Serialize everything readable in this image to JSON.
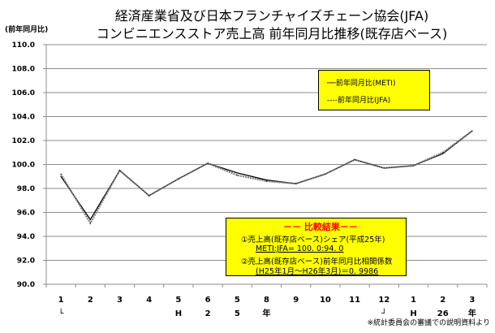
{
  "chart_data": {
    "type": "line",
    "title": [
      "経済産業省及び日本フランチャイズチェーン協会(JFA)",
      "コンビニエンスストア売上高 前年同月比推移(既存店ベース)"
    ],
    "ylabel": "(前年同月比)",
    "ylim": [
      90,
      110
    ],
    "yticks": [
      "110.0",
      "108.0",
      "106.0",
      "104.0",
      "102.0",
      "100.0",
      "98.0",
      "96.0",
      "94.0",
      "92.0",
      "90.0"
    ],
    "categories": [
      "1",
      "2",
      "3",
      "4",
      "5",
      "6",
      "5",
      "8",
      "9",
      "10",
      "11",
      "12",
      "1",
      "2",
      "3"
    ],
    "category_sublabels": [
      "└",
      "",
      "",
      "",
      "H",
      "2",
      "5",
      "年",
      "",
      "",
      "",
      "┘",
      "H",
      "26",
      "年"
    ],
    "grid": true,
    "series": [
      {
        "name": "前年同月比(METI)",
        "style": "solid",
        "values": [
          99.0,
          95.4,
          99.5,
          97.4,
          98.8,
          100.1,
          99.3,
          98.7,
          98.4,
          99.2,
          100.4,
          99.7,
          99.9,
          100.9,
          102.8
        ]
      },
      {
        "name": "前年同月比(JFA)",
        "style": "dashed",
        "values": [
          99.2,
          95.1,
          99.5,
          97.4,
          98.8,
          100.1,
          99.1,
          98.6,
          98.4,
          99.2,
          100.4,
          99.7,
          99.9,
          101.0,
          102.8
        ]
      }
    ],
    "legend": {
      "placement": "top-right",
      "items": [
        "──前年同月比(METI)",
        "----前年同月比(JFA)"
      ]
    },
    "annotation": {
      "heading": "－－ 比較結果－－",
      "lines": [
        "①売上高(既存店ベース)シェア(平成25年)",
        "METI:JFA= 100. 0:94. 0",
        "②売上高(既存店ベース)前年同月比相関係数",
        "(H25年1月～H26年3月)＝0. 9986"
      ]
    },
    "source_note": "※統計委員会の審議での説明資料より"
  }
}
